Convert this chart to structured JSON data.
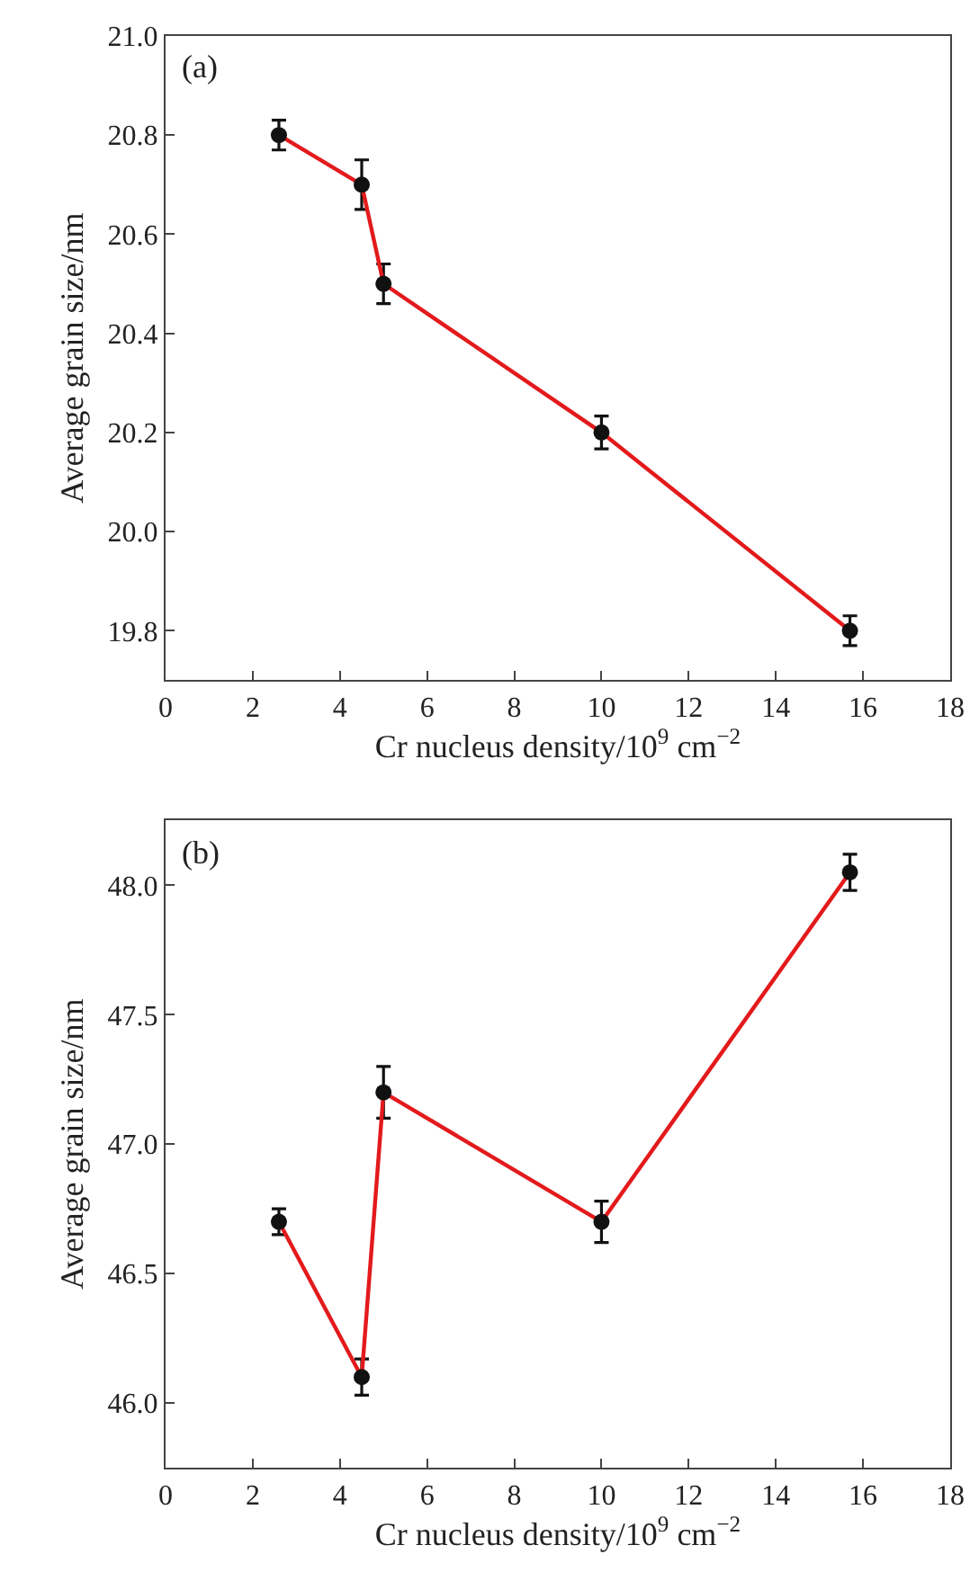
{
  "chart_data": [
    {
      "type": "line",
      "xlabel": "Cr nucleus density/10$^{9}$ cm$^{−2}$",
      "ylabel": "Average grain size/nm",
      "annotations": [
        "(a)"
      ],
      "x": [
        2.6,
        4.5,
        5.0,
        10.0,
        15.7
      ],
      "series": [
        {
          "color": "#e31a1c",
          "values": [
            20.8,
            20.7,
            20.5,
            20.2,
            19.8
          ],
          "errors": [
            0.03,
            0.05,
            0.04,
            0.033,
            0.03
          ]
        }
      ],
      "xlim": [
        0,
        18
      ],
      "xticks": [
        0,
        2,
        4,
        6,
        8,
        10,
        12,
        14,
        16,
        18
      ],
      "ylim": [
        19.7,
        21.0
      ],
      "yticks": [
        {
          "value": 19.8,
          "label": "19.8"
        },
        {
          "value": 20.0,
          "label": "20.0"
        },
        {
          "value": 20.2,
          "label": "20.2"
        },
        {
          "value": 20.4,
          "label": "20.4"
        },
        {
          "value": 20.6,
          "label": "20.6"
        },
        {
          "value": 20.8,
          "label": "20.8"
        },
        {
          "value": 21.0,
          "label": "21.0"
        }
      ],
      "marker": "circle",
      "line_style": "solid"
    },
    {
      "type": "line",
      "xlabel": "Cr nucleus density/10$^{9}$ cm$^{−2}$",
      "ylabel": "Average grain size/nm",
      "annotations": [
        "(b)"
      ],
      "x": [
        2.6,
        4.5,
        5.0,
        10.0,
        15.7
      ],
      "series": [
        {
          "color": "#e31a1c",
          "values": [
            46.7,
            46.1,
            47.2,
            46.7,
            48.05
          ],
          "errors": [
            0.05,
            0.07,
            0.1,
            0.08,
            0.07
          ]
        }
      ],
      "xlim": [
        0,
        18
      ],
      "xticks": [
        0,
        2,
        4,
        6,
        8,
        10,
        12,
        14,
        16,
        18
      ],
      "ylim": [
        45.75,
        48.25
      ],
      "yticks": [
        {
          "value": 46.0,
          "label": "46.0"
        },
        {
          "value": 46.5,
          "label": "46.5"
        },
        {
          "value": 47.0,
          "label": "47.0"
        },
        {
          "value": 47.5,
          "label": "47.5"
        },
        {
          "value": 48.0,
          "label": "48.0"
        }
      ],
      "marker": "circle",
      "line_style": "solid"
    }
  ]
}
